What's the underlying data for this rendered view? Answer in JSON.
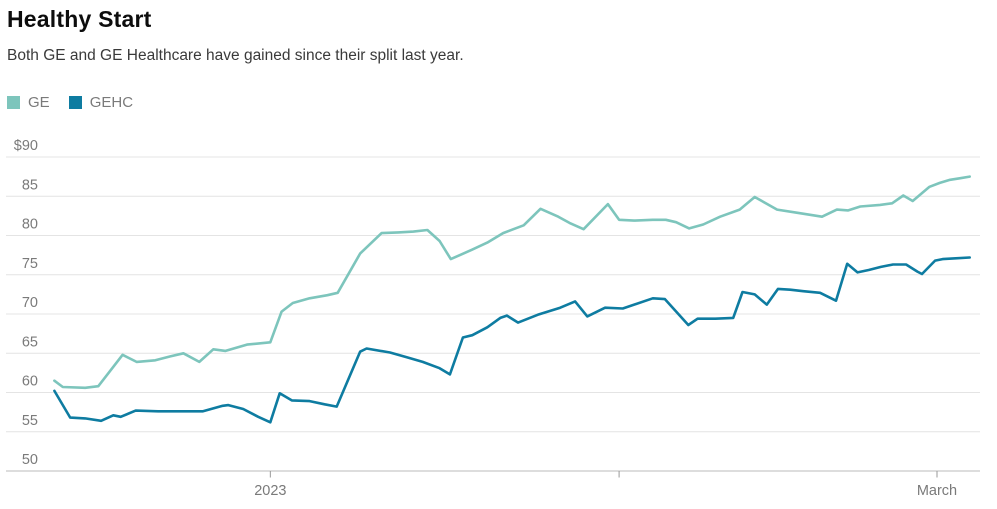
{
  "header": {
    "title": "Healthy Start",
    "subtitle": "Both GE and GE Healthcare have gained since their split last year."
  },
  "legend": {
    "items": [
      {
        "label": "GE",
        "color": "#7dc5bc"
      },
      {
        "label": "GEHC",
        "color": "#0e7ca1"
      }
    ]
  },
  "colors": {
    "ge_line": "#7dc5bc",
    "gehc_line": "#0e7ca1",
    "gridline": "#e4e4e4",
    "axis_line": "#bbbbbb",
    "tick_mark": "#999999",
    "axis_text": "#7a7a7a",
    "title_text": "#0d0d0d",
    "subtitle_text": "#3a3a3a"
  },
  "chart_data": {
    "type": "line",
    "title": "Healthy Start",
    "subtitle": "Both GE and GE Healthcare have gained since their split last year.",
    "grid": true,
    "legend_position": "top-left",
    "ylim": [
      50,
      90
    ],
    "y_axis": {
      "gridline_values": [
        90,
        85,
        80,
        75,
        70,
        65,
        60,
        55,
        50
      ],
      "labels": [
        "$90",
        "85",
        "80",
        "75",
        "70",
        "65",
        "60",
        "55",
        "50"
      ]
    },
    "x_axis": {
      "ticks": [
        {
          "label": "2023",
          "t": 0.241
        },
        {
          "label": "",
          "t": 0.614
        },
        {
          "label": "March",
          "t": 0.954
        }
      ]
    },
    "series": [
      {
        "name": "GE",
        "color": "#7dc5bc",
        "points": [
          [
            0.01,
            61.5
          ],
          [
            0.019,
            60.7
          ],
          [
            0.043,
            60.6
          ],
          [
            0.057,
            60.8
          ],
          [
            0.083,
            64.8
          ],
          [
            0.098,
            63.9
          ],
          [
            0.118,
            64.1
          ],
          [
            0.134,
            64.6
          ],
          [
            0.148,
            65.0
          ],
          [
            0.165,
            63.9
          ],
          [
            0.18,
            65.5
          ],
          [
            0.193,
            65.3
          ],
          [
            0.216,
            66.1
          ],
          [
            0.241,
            66.4
          ],
          [
            0.253,
            70.3
          ],
          [
            0.265,
            71.4
          ],
          [
            0.283,
            72.0
          ],
          [
            0.302,
            72.4
          ],
          [
            0.313,
            72.7
          ],
          [
            0.337,
            77.7
          ],
          [
            0.36,
            80.3
          ],
          [
            0.378,
            80.4
          ],
          [
            0.394,
            80.5
          ],
          [
            0.409,
            80.7
          ],
          [
            0.422,
            79.3
          ],
          [
            0.434,
            77.0
          ],
          [
            0.457,
            78.2
          ],
          [
            0.473,
            79.1
          ],
          [
            0.49,
            80.3
          ],
          [
            0.501,
            80.8
          ],
          [
            0.512,
            81.3
          ],
          [
            0.53,
            83.4
          ],
          [
            0.549,
            82.4
          ],
          [
            0.561,
            81.6
          ],
          [
            0.576,
            80.8
          ],
          [
            0.602,
            84.0
          ],
          [
            0.614,
            82.0
          ],
          [
            0.63,
            81.9
          ],
          [
            0.65,
            82.0
          ],
          [
            0.664,
            82.0
          ],
          [
            0.675,
            81.7
          ],
          [
            0.689,
            80.9
          ],
          [
            0.704,
            81.4
          ],
          [
            0.722,
            82.4
          ],
          [
            0.743,
            83.3
          ],
          [
            0.759,
            84.9
          ],
          [
            0.783,
            83.3
          ],
          [
            0.804,
            82.9
          ],
          [
            0.831,
            82.4
          ],
          [
            0.847,
            83.3
          ],
          [
            0.859,
            83.2
          ],
          [
            0.872,
            83.7
          ],
          [
            0.893,
            83.9
          ],
          [
            0.906,
            84.1
          ],
          [
            0.918,
            85.1
          ],
          [
            0.928,
            84.4
          ],
          [
            0.939,
            85.5
          ],
          [
            0.946,
            86.2
          ],
          [
            0.957,
            86.7
          ],
          [
            0.968,
            87.1
          ],
          [
            0.979,
            87.3
          ],
          [
            0.989,
            87.5
          ]
        ]
      },
      {
        "name": "GEHC",
        "color": "#0e7ca1",
        "points": [
          [
            0.01,
            60.2
          ],
          [
            0.027,
            56.8
          ],
          [
            0.043,
            56.7
          ],
          [
            0.06,
            56.4
          ],
          [
            0.073,
            57.1
          ],
          [
            0.081,
            56.9
          ],
          [
            0.097,
            57.7
          ],
          [
            0.121,
            57.6
          ],
          [
            0.148,
            57.6
          ],
          [
            0.169,
            57.6
          ],
          [
            0.19,
            58.3
          ],
          [
            0.196,
            58.4
          ],
          [
            0.212,
            57.9
          ],
          [
            0.228,
            56.9
          ],
          [
            0.241,
            56.2
          ],
          [
            0.251,
            59.9
          ],
          [
            0.264,
            59.0
          ],
          [
            0.283,
            58.9
          ],
          [
            0.299,
            58.5
          ],
          [
            0.312,
            58.2
          ],
          [
            0.337,
            65.2
          ],
          [
            0.344,
            65.6
          ],
          [
            0.369,
            65.1
          ],
          [
            0.387,
            64.5
          ],
          [
            0.404,
            63.9
          ],
          [
            0.422,
            63.1
          ],
          [
            0.433,
            62.3
          ],
          [
            0.447,
            67.0
          ],
          [
            0.457,
            67.3
          ],
          [
            0.473,
            68.3
          ],
          [
            0.487,
            69.5
          ],
          [
            0.494,
            69.8
          ],
          [
            0.506,
            68.9
          ],
          [
            0.527,
            69.9
          ],
          [
            0.551,
            70.8
          ],
          [
            0.567,
            71.6
          ],
          [
            0.58,
            69.7
          ],
          [
            0.599,
            70.8
          ],
          [
            0.618,
            70.7
          ],
          [
            0.65,
            72.0
          ],
          [
            0.663,
            71.9
          ],
          [
            0.688,
            68.6
          ],
          [
            0.698,
            69.4
          ],
          [
            0.717,
            69.4
          ],
          [
            0.736,
            69.5
          ],
          [
            0.746,
            72.8
          ],
          [
            0.759,
            72.5
          ],
          [
            0.772,
            71.2
          ],
          [
            0.784,
            73.2
          ],
          [
            0.797,
            73.1
          ],
          [
            0.811,
            72.9
          ],
          [
            0.829,
            72.7
          ],
          [
            0.846,
            71.7
          ],
          [
            0.858,
            76.4
          ],
          [
            0.869,
            75.3
          ],
          [
            0.881,
            75.6
          ],
          [
            0.894,
            76.0
          ],
          [
            0.907,
            76.3
          ],
          [
            0.921,
            76.3
          ],
          [
            0.933,
            75.4
          ],
          [
            0.938,
            75.1
          ],
          [
            0.952,
            76.8
          ],
          [
            0.96,
            77.0
          ],
          [
            0.974,
            77.1
          ],
          [
            0.989,
            77.2
          ]
        ]
      }
    ]
  }
}
